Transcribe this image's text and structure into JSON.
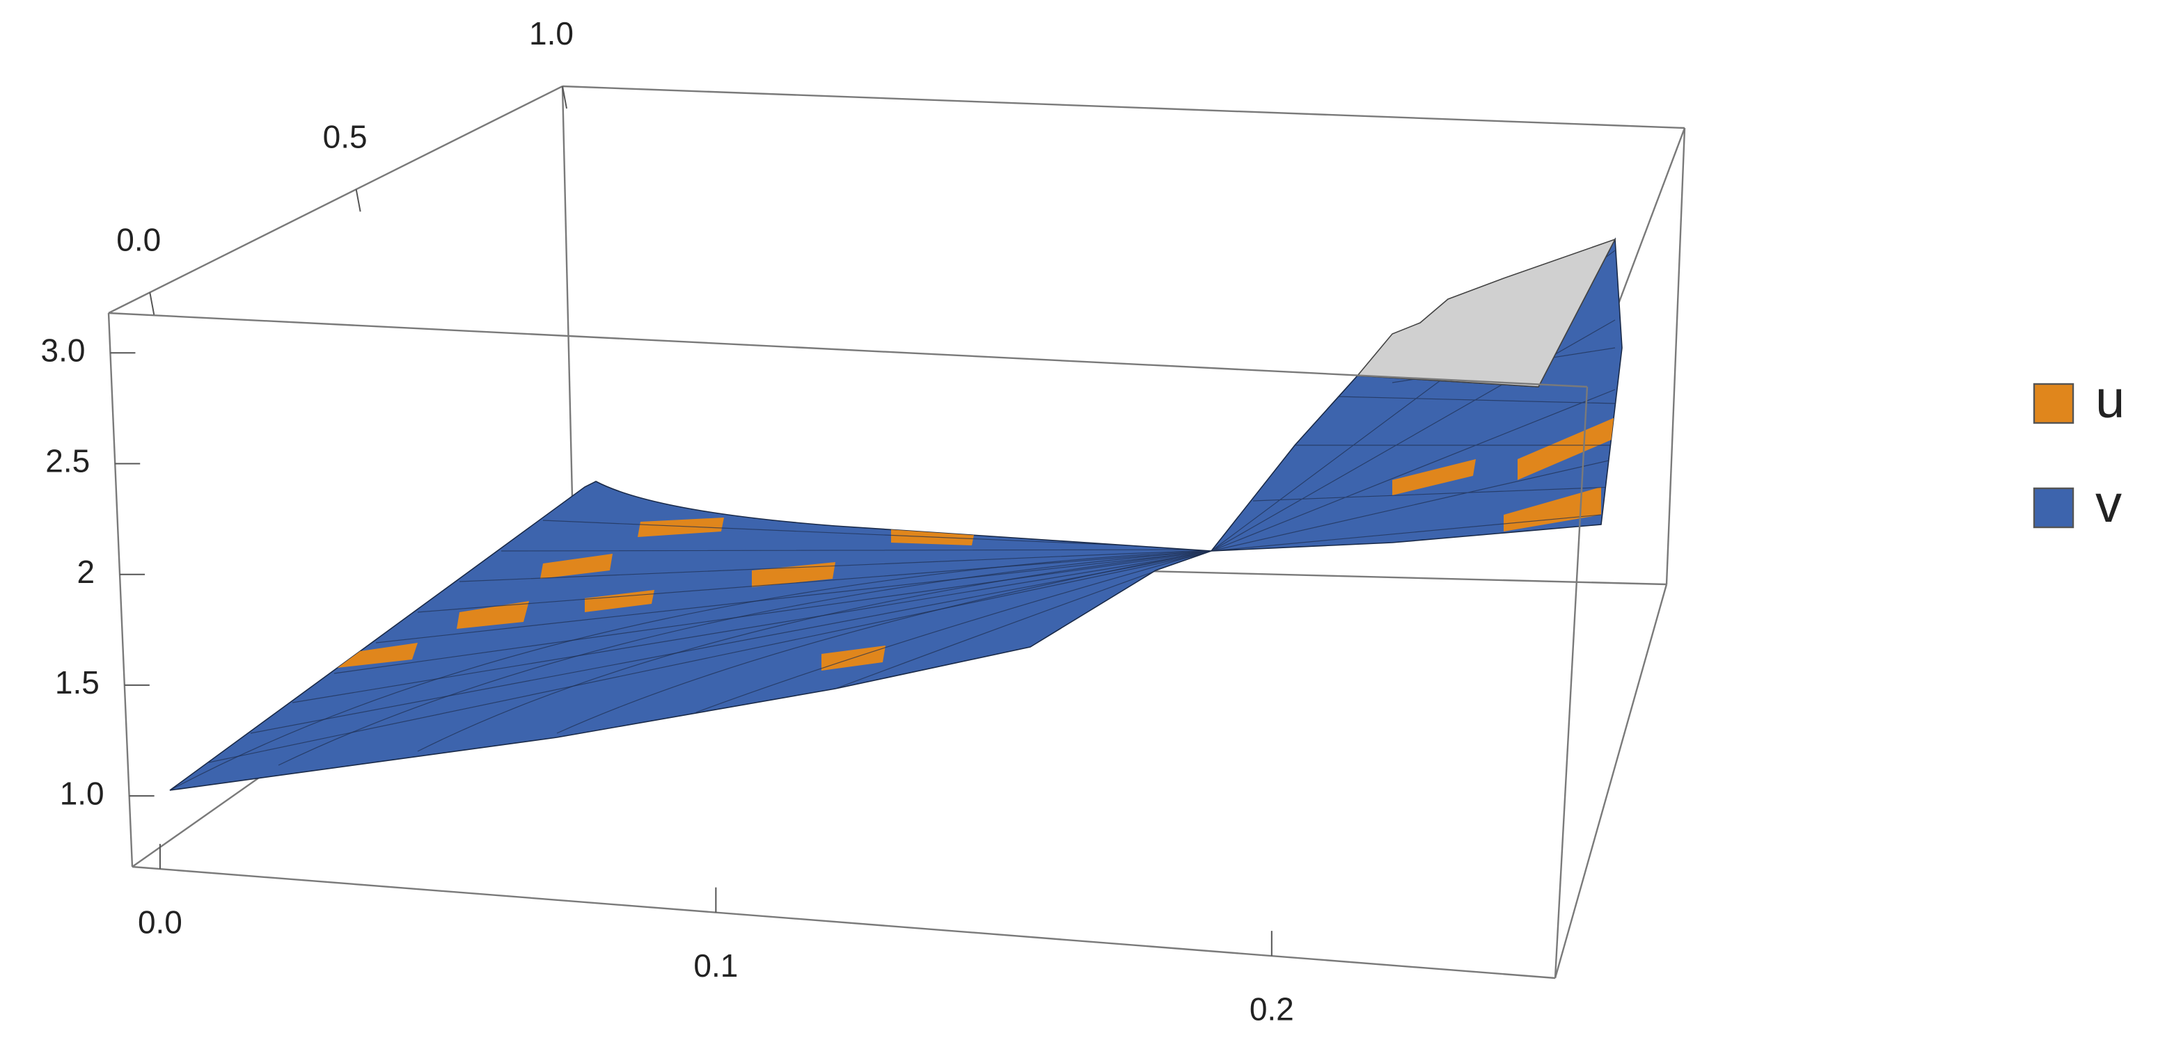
{
  "chart_data": {
    "type": "surface3d",
    "xticks": [
      {
        "value": 0,
        "label": "0.0"
      },
      {
        "value": 0.1,
        "label": "0.1"
      },
      {
        "value": 0.2,
        "label": "0.2"
      }
    ],
    "xlim": [
      -0.005,
      0.251
    ],
    "yticks": [
      {
        "value": 0,
        "label": "0.0"
      },
      {
        "value": 0.5,
        "label": "0.5"
      },
      {
        "value": 1,
        "label": "1.0"
      }
    ],
    "ylim": [
      -0.1,
      1.0
    ],
    "zticks": [
      {
        "value": 1,
        "label": "1.0"
      },
      1.5,
      2,
      2.5,
      {
        "value": 3,
        "label": "3.0"
      }
    ],
    "zlim": [
      0.68,
      3.18
    ],
    "series": [
      {
        "name": "u",
        "color": "#e0861c"
      },
      {
        "name": "v",
        "color": "#3d64ad"
      }
    ],
    "legend": "right"
  }
}
